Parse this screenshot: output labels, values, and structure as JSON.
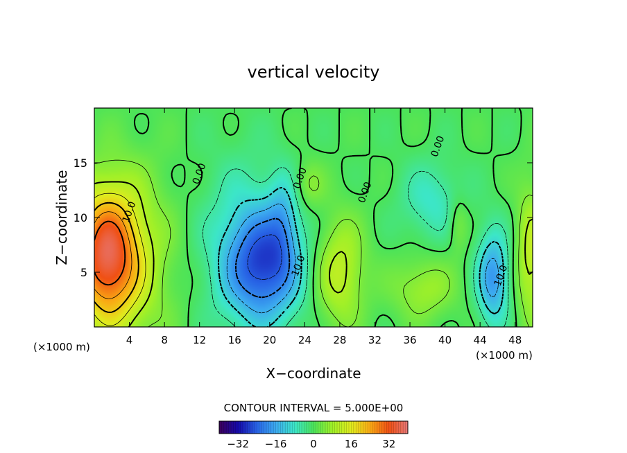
{
  "chart_data": {
    "type": "heatmap",
    "title": "vertical velocity",
    "xlabel": "X−coordinate",
    "ylabel": "Z−coordinate",
    "x_unit_left": "(×1000 m)",
    "x_unit_right": "(×1000 m)",
    "xlim": [
      0,
      50
    ],
    "ylim": [
      0,
      20
    ],
    "x_ticks": [
      4,
      8,
      12,
      16,
      20,
      24,
      28,
      32,
      36,
      40,
      44,
      48
    ],
    "x_tick_labels": [
      "4",
      "8",
      "12",
      "16",
      "20",
      "24",
      "28",
      "32",
      "36",
      "40",
      "44",
      "48"
    ],
    "y_ticks": [
      5,
      10,
      15
    ],
    "y_tick_labels": [
      "5",
      "10",
      "15"
    ],
    "contour_interval_text": "CONTOUR INTERVAL = 5.000E+00",
    "contour_interval": 5,
    "contour_labels": [
      {
        "text": "10.0",
        "x": 4.3,
        "y": 10.4
      },
      {
        "text": "0.00",
        "x": 12.3,
        "y": 13.9
      },
      {
        "text": "0.00",
        "x": 23.8,
        "y": 13.5
      },
      {
        "text": "0.00",
        "x": 31.2,
        "y": 12.2
      },
      {
        "text": "0.00",
        "x": 39.5,
        "y": 16.4
      },
      {
        "text": "10.0",
        "x": 23.6,
        "y": 5.5
      },
      {
        "text": "10.0",
        "x": 46.7,
        "y": 4.6
      }
    ],
    "field_features": [
      {
        "x": 1.3,
        "z": 6.5,
        "value": 32,
        "sx": 2.6,
        "sz": 4.2
      },
      {
        "x": 4.5,
        "z": 6.0,
        "value": 8,
        "sx": 3.5,
        "sz": 6.0
      },
      {
        "x": 19.5,
        "z": 5.5,
        "value": -22,
        "sx": 3.0,
        "sz": 3.5
      },
      {
        "x": 17.0,
        "z": 7.5,
        "value": -8,
        "sx": 3.5,
        "sz": 5.5
      },
      {
        "x": 21.5,
        "z": 10.0,
        "value": -8,
        "sx": 1.2,
        "sz": 3.0
      },
      {
        "x": 28.0,
        "z": 5.0,
        "value": 12,
        "sx": 2.0,
        "sz": 3.5
      },
      {
        "x": 37.5,
        "z": 3.5,
        "value": 8,
        "sx": 2.5,
        "sz": 2.0
      },
      {
        "x": 45.5,
        "z": 4.5,
        "value": -18,
        "sx": 1.3,
        "sz": 3.0
      },
      {
        "x": 49.8,
        "z": 6.5,
        "value": 12,
        "sx": 1.2,
        "sz": 4.5
      },
      {
        "x": 38.5,
        "z": 11.5,
        "value": -8,
        "sx": 2.5,
        "sz": 2.5
      },
      {
        "x": 24.5,
        "z": 13.0,
        "value": 6,
        "sx": 1.2,
        "sz": 1.5
      },
      {
        "x": 41.5,
        "z": 9.5,
        "value": 6,
        "sx": 0.8,
        "sz": 1.8
      }
    ],
    "colorbar": {
      "min": -40,
      "max": 40,
      "ticks": [
        -32,
        -16,
        0,
        16,
        32
      ],
      "tick_labels": [
        "−32",
        "−16",
        "0",
        "16",
        "32"
      ]
    }
  }
}
